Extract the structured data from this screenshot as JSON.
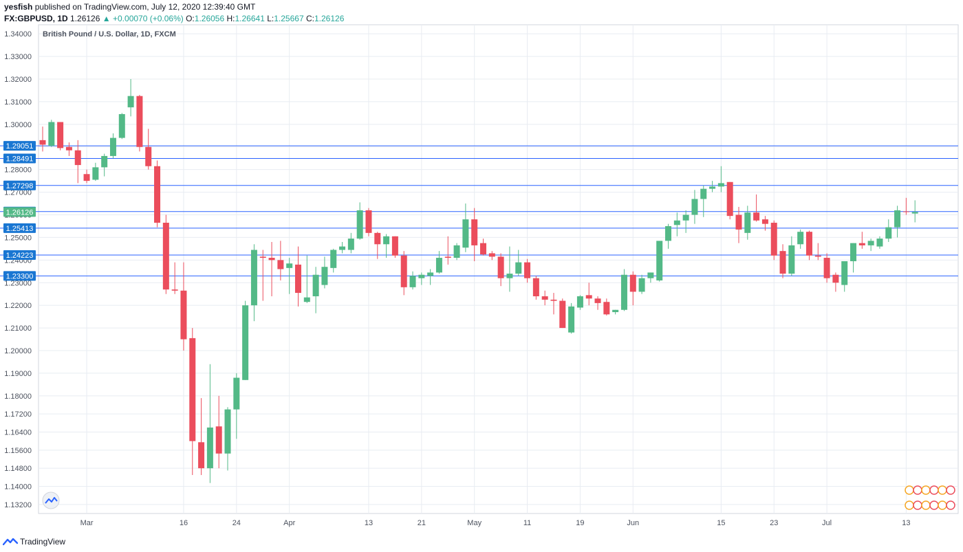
{
  "header": {
    "user": "yesfish",
    "published": "published on TradingView.com, July 12, 2020 12:39:40 GMT",
    "symbol": "FX:GBPUSD, 1D",
    "last": "1.26126",
    "change": "+0.00070 (+0.06%)",
    "o_label": "O:",
    "o_val": "1.26056",
    "h_label": "H:",
    "h_val": "1.26641",
    "l_label": "L:",
    "l_val": "1.25667",
    "c_label": "C:",
    "c_val": "1.26126"
  },
  "footer": {
    "brand": "TradingView"
  },
  "chart_data": {
    "type": "candlestick",
    "title": "British Pound / U.S. Dollar, 1D, FXCM",
    "ylim": [
      1.128,
      1.344
    ],
    "y_ticks": [
      1.34,
      1.33,
      1.32,
      1.31,
      1.3,
      1.29,
      1.28,
      1.27,
      1.26,
      1.25,
      1.24,
      1.23,
      1.22,
      1.21,
      1.2,
      1.19,
      1.18,
      1.172,
      1.164,
      1.156,
      1.148,
      1.14,
      1.132
    ],
    "x_ticks": [
      "Mar",
      "16",
      "24",
      "Apr",
      "13",
      "21",
      "May",
      "11",
      "19",
      "Jun",
      "15",
      "23",
      "Jul",
      "13"
    ],
    "x_tick_positions": [
      5,
      16,
      22,
      28,
      37,
      43,
      49,
      55,
      61,
      67,
      77,
      83,
      89,
      98
    ],
    "candles": [
      {
        "o": 1.293,
        "h": 1.299,
        "l": 1.288,
        "c": 1.291
      },
      {
        "o": 1.2905,
        "h": 1.302,
        "l": 1.29,
        "c": 1.301
      },
      {
        "o": 1.301,
        "h": 1.301,
        "l": 1.2885,
        "c": 1.2895
      },
      {
        "o": 1.29,
        "h": 1.292,
        "l": 1.286,
        "c": 1.2885
      },
      {
        "o": 1.2885,
        "h": 1.293,
        "l": 1.274,
        "c": 1.282
      },
      {
        "o": 1.278,
        "h": 1.28,
        "l": 1.274,
        "c": 1.275
      },
      {
        "o": 1.2755,
        "h": 1.283,
        "l": 1.275,
        "c": 1.281
      },
      {
        "o": 1.281,
        "h": 1.287,
        "l": 1.277,
        "c": 1.286
      },
      {
        "o": 1.286,
        "h": 1.296,
        "l": 1.285,
        "c": 1.294
      },
      {
        "o": 1.294,
        "h": 1.305,
        "l": 1.2935,
        "c": 1.3045
      },
      {
        "o": 1.3075,
        "h": 1.32,
        "l": 1.3035,
        "c": 1.3125
      },
      {
        "o": 1.3125,
        "h": 1.313,
        "l": 1.288,
        "c": 1.29
      },
      {
        "o": 1.29,
        "h": 1.298,
        "l": 1.28,
        "c": 1.2815
      },
      {
        "o": 1.2815,
        "h": 1.284,
        "l": 1.2545,
        "c": 1.2565
      },
      {
        "o": 1.2565,
        "h": 1.26,
        "l": 1.225,
        "c": 1.227
      },
      {
        "o": 1.227,
        "h": 1.239,
        "l": 1.225,
        "c": 1.2265
      },
      {
        "o": 1.2265,
        "h": 1.239,
        "l": 1.2,
        "c": 1.205
      },
      {
        "o": 1.2055,
        "h": 1.21,
        "l": 1.145,
        "c": 1.16
      },
      {
        "o": 1.1595,
        "h": 1.179,
        "l": 1.145,
        "c": 1.148
      },
      {
        "o": 1.148,
        "h": 1.194,
        "l": 1.1415,
        "c": 1.166
      },
      {
        "o": 1.1665,
        "h": 1.18,
        "l": 1.148,
        "c": 1.1545
      },
      {
        "o": 1.1545,
        "h": 1.175,
        "l": 1.147,
        "c": 1.174
      },
      {
        "o": 1.174,
        "h": 1.19,
        "l": 1.161,
        "c": 1.188
      },
      {
        "o": 1.187,
        "h": 1.222,
        "l": 1.187,
        "c": 1.22
      },
      {
        "o": 1.22,
        "h": 1.247,
        "l": 1.213,
        "c": 1.2445
      },
      {
        "o": 1.2415,
        "h": 1.2445,
        "l": 1.222,
        "c": 1.241
      },
      {
        "o": 1.241,
        "h": 1.248,
        "l": 1.224,
        "c": 1.24
      },
      {
        "o": 1.24,
        "h": 1.2485,
        "l": 1.231,
        "c": 1.236
      },
      {
        "o": 1.2365,
        "h": 1.241,
        "l": 1.225,
        "c": 1.2385
      },
      {
        "o": 1.238,
        "h": 1.246,
        "l": 1.2195,
        "c": 1.2255
      },
      {
        "o": 1.2215,
        "h": 1.242,
        "l": 1.221,
        "c": 1.2235
      },
      {
        "o": 1.224,
        "h": 1.237,
        "l": 1.2165,
        "c": 1.2335
      },
      {
        "o": 1.229,
        "h": 1.2415,
        "l": 1.2275,
        "c": 1.237
      },
      {
        "o": 1.2365,
        "h": 1.245,
        "l": 1.2345,
        "c": 1.2445
      },
      {
        "o": 1.2445,
        "h": 1.248,
        "l": 1.243,
        "c": 1.246
      },
      {
        "o": 1.2445,
        "h": 1.252,
        "l": 1.243,
        "c": 1.2495
      },
      {
        "o": 1.2495,
        "h": 1.2655,
        "l": 1.249,
        "c": 1.262
      },
      {
        "o": 1.262,
        "h": 1.263,
        "l": 1.2505,
        "c": 1.252
      },
      {
        "o": 1.252,
        "h": 1.2525,
        "l": 1.2405,
        "c": 1.247
      },
      {
        "o": 1.247,
        "h": 1.2515,
        "l": 1.241,
        "c": 1.2505
      },
      {
        "o": 1.2505,
        "h": 1.2505,
        "l": 1.241,
        "c": 1.242
      },
      {
        "o": 1.242,
        "h": 1.244,
        "l": 1.2245,
        "c": 1.228
      },
      {
        "o": 1.228,
        "h": 1.235,
        "l": 1.227,
        "c": 1.233
      },
      {
        "o": 1.232,
        "h": 1.2345,
        "l": 1.229,
        "c": 1.2335
      },
      {
        "o": 1.233,
        "h": 1.236,
        "l": 1.229,
        "c": 1.2345
      },
      {
        "o": 1.2345,
        "h": 1.244,
        "l": 1.234,
        "c": 1.241
      },
      {
        "o": 1.2415,
        "h": 1.2505,
        "l": 1.238,
        "c": 1.241
      },
      {
        "o": 1.241,
        "h": 1.2475,
        "l": 1.24,
        "c": 1.2465
      },
      {
        "o": 1.2455,
        "h": 1.265,
        "l": 1.2435,
        "c": 1.258
      },
      {
        "o": 1.258,
        "h": 1.263,
        "l": 1.2395,
        "c": 1.2465
      },
      {
        "o": 1.2475,
        "h": 1.2495,
        "l": 1.242,
        "c": 1.2425
      },
      {
        "o": 1.243,
        "h": 1.244,
        "l": 1.24,
        "c": 1.2415
      },
      {
        "o": 1.2415,
        "h": 1.243,
        "l": 1.2285,
        "c": 1.232
      },
      {
        "o": 1.232,
        "h": 1.246,
        "l": 1.226,
        "c": 1.234
      },
      {
        "o": 1.234,
        "h": 1.2445,
        "l": 1.233,
        "c": 1.239
      },
      {
        "o": 1.239,
        "h": 1.2405,
        "l": 1.23,
        "c": 1.232
      },
      {
        "o": 1.232,
        "h": 1.233,
        "l": 1.2225,
        "c": 1.224
      },
      {
        "o": 1.224,
        "h": 1.2265,
        "l": 1.22,
        "c": 1.2225
      },
      {
        "o": 1.2225,
        "h": 1.2255,
        "l": 1.216,
        "c": 1.222
      },
      {
        "o": 1.222,
        "h": 1.223,
        "l": 1.21,
        "c": 1.21
      },
      {
        "o": 1.208,
        "h": 1.221,
        "l": 1.2075,
        "c": 1.2195
      },
      {
        "o": 1.219,
        "h": 1.2245,
        "l": 1.218,
        "c": 1.224
      },
      {
        "o": 1.2245,
        "h": 1.23,
        "l": 1.22,
        "c": 1.223
      },
      {
        "o": 1.223,
        "h": 1.224,
        "l": 1.218,
        "c": 1.221
      },
      {
        "o": 1.2215,
        "h": 1.223,
        "l": 1.2155,
        "c": 1.216
      },
      {
        "o": 1.217,
        "h": 1.218,
        "l": 1.216,
        "c": 1.218
      },
      {
        "o": 1.218,
        "h": 1.236,
        "l": 1.2175,
        "c": 1.2335
      },
      {
        "o": 1.2335,
        "h": 1.235,
        "l": 1.22,
        "c": 1.226
      },
      {
        "o": 1.226,
        "h": 1.2335,
        "l": 1.225,
        "c": 1.232
      },
      {
        "o": 1.232,
        "h": 1.2345,
        "l": 1.23,
        "c": 1.2345
      },
      {
        "o": 1.231,
        "h": 1.248,
        "l": 1.2305,
        "c": 1.2485
      },
      {
        "o": 1.2485,
        "h": 1.256,
        "l": 1.245,
        "c": 1.255
      },
      {
        "o": 1.2555,
        "h": 1.261,
        "l": 1.2505,
        "c": 1.2575
      },
      {
        "o": 1.2575,
        "h": 1.262,
        "l": 1.252,
        "c": 1.26
      },
      {
        "o": 1.26,
        "h": 1.271,
        "l": 1.256,
        "c": 1.267
      },
      {
        "o": 1.267,
        "h": 1.273,
        "l": 1.259,
        "c": 1.2715
      },
      {
        "o": 1.2715,
        "h": 1.275,
        "l": 1.27,
        "c": 1.2725
      },
      {
        "o": 1.2725,
        "h": 1.2815,
        "l": 1.27,
        "c": 1.274
      },
      {
        "o": 1.2745,
        "h": 1.2745,
        "l": 1.258,
        "c": 1.2595
      },
      {
        "o": 1.26,
        "h": 1.2635,
        "l": 1.2475,
        "c": 1.2535
      },
      {
        "o": 1.252,
        "h": 1.264,
        "l": 1.249,
        "c": 1.261
      },
      {
        "o": 1.261,
        "h": 1.269,
        "l": 1.257,
        "c": 1.2575
      },
      {
        "o": 1.258,
        "h": 1.2595,
        "l": 1.253,
        "c": 1.256
      },
      {
        "o": 1.2565,
        "h": 1.2575,
        "l": 1.24,
        "c": 1.242
      },
      {
        "o": 1.244,
        "h": 1.247,
        "l": 1.232,
        "c": 1.234
      },
      {
        "o": 1.234,
        "h": 1.2505,
        "l": 1.233,
        "c": 1.2465
      },
      {
        "o": 1.247,
        "h": 1.2535,
        "l": 1.245,
        "c": 1.2525
      },
      {
        "o": 1.2525,
        "h": 1.253,
        "l": 1.24,
        "c": 1.242
      },
      {
        "o": 1.242,
        "h": 1.2475,
        "l": 1.24,
        "c": 1.2415
      },
      {
        "o": 1.241,
        "h": 1.243,
        "l": 1.23,
        "c": 1.232
      },
      {
        "o": 1.2335,
        "h": 1.2345,
        "l": 1.226,
        "c": 1.23
      },
      {
        "o": 1.229,
        "h": 1.2395,
        "l": 1.226,
        "c": 1.2395
      },
      {
        "o": 1.2395,
        "h": 1.2475,
        "l": 1.2345,
        "c": 1.2475
      },
      {
        "o": 1.2475,
        "h": 1.2525,
        "l": 1.245,
        "c": 1.2465
      },
      {
        "o": 1.2465,
        "h": 1.2495,
        "l": 1.244,
        "c": 1.2485
      },
      {
        "o": 1.246,
        "h": 1.2505,
        "l": 1.245,
        "c": 1.2495
      },
      {
        "o": 1.2495,
        "h": 1.258,
        "l": 1.248,
        "c": 1.2545
      },
      {
        "o": 1.2545,
        "h": 1.264,
        "l": 1.25,
        "c": 1.262
      },
      {
        "o": 1.2615,
        "h": 1.2675,
        "l": 1.26,
        "c": 1.2612
      },
      {
        "o": 1.26056,
        "h": 1.26641,
        "l": 1.25667,
        "c": 1.26126
      }
    ],
    "h_lines": [
      {
        "value": 1.29051,
        "label": "1.29051"
      },
      {
        "value": 1.28491,
        "label": "1.28491"
      },
      {
        "value": 1.27298,
        "label": "1.27298"
      },
      {
        "value": 1.26143,
        "label": "1.26143"
      },
      {
        "value": 1.25413,
        "label": "1.25413"
      },
      {
        "value": 1.24223,
        "label": "1.24223"
      },
      {
        "value": 1.233,
        "label": "1.23300"
      }
    ],
    "last_price": {
      "value": 1.26126,
      "label": "1.26126"
    },
    "colors": {
      "up": "#53b987",
      "down": "#eb4d5c",
      "hline": "#2962ff",
      "grid": "#e8ecf2",
      "label_bg": "#1976d2",
      "last_bg": "#53b987"
    }
  }
}
